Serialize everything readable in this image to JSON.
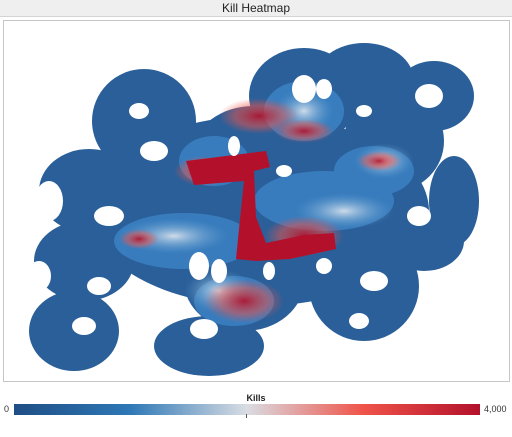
{
  "window": {
    "title": "Kill Heatmap"
  },
  "chart_data": {
    "type": "heatmap",
    "title": "Kill Heatmap",
    "value_label": "Kills",
    "color_range": [
      0,
      4000
    ],
    "color_range_labels": [
      "0",
      "4,000"
    ],
    "color_scale": [
      "#1f4e85",
      "#2e78b6",
      "#d9dde3",
      "#ef5349",
      "#b3112b"
    ],
    "grid": false,
    "legend_position": "bottom"
  }
}
